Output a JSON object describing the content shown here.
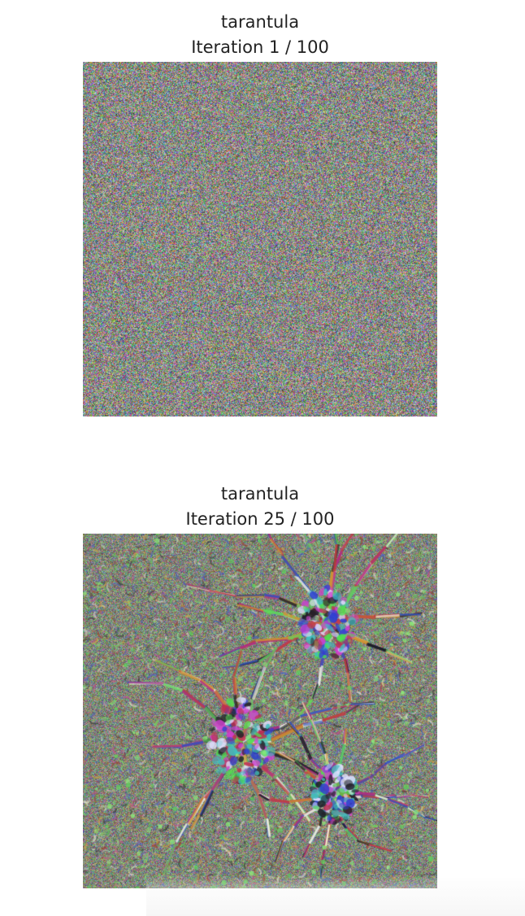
{
  "figures": [
    {
      "class_label": "tarantula",
      "iteration_label": "Iteration 1 / 100",
      "iteration": 1,
      "total_iterations": 100,
      "image_style": "random-noise"
    },
    {
      "class_label": "tarantula",
      "iteration_label": "Iteration 25 / 100",
      "iteration": 25,
      "total_iterations": 100,
      "image_style": "emerging-spider-structure"
    }
  ],
  "colors": {
    "background": "#ffffff",
    "text": "#222222",
    "noise_mean": "#8a8a80"
  }
}
